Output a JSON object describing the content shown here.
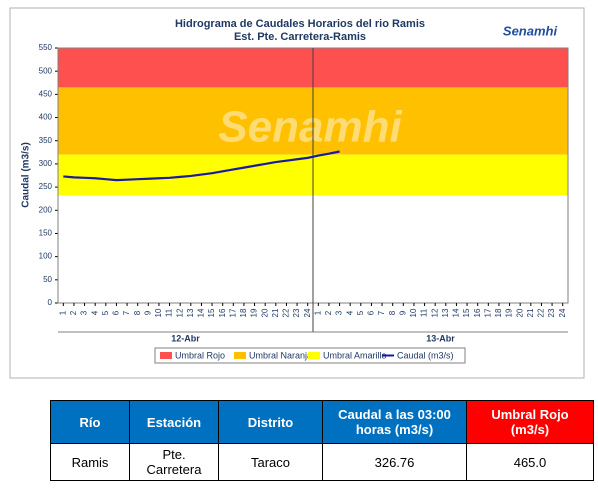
{
  "chart_data": {
    "type": "line",
    "title": "Hidrograma de Caudales Horarios del rio Ramis",
    "subtitle": "Est. Pte. Carretera-Ramis",
    "logo": "Senamhi",
    "y_label": "Caudal (m3/s)",
    "categories": [
      "1",
      "2",
      "3",
      "4",
      "5",
      "6",
      "7",
      "8",
      "9",
      "10",
      "11",
      "12",
      "13",
      "14",
      "15",
      "16",
      "17",
      "18",
      "19",
      "20",
      "21",
      "22",
      "23",
      "24",
      "1",
      "2",
      "3",
      "4",
      "5",
      "6",
      "7",
      "8",
      "9",
      "10",
      "11",
      "12",
      "13",
      "14",
      "15",
      "16",
      "17",
      "18",
      "19",
      "20",
      "21",
      "22",
      "23",
      "24"
    ],
    "groups": [
      "12-Abr",
      "13-Abr"
    ],
    "ylim": [
      0,
      550
    ],
    "yticks": [
      0,
      50,
      100,
      150,
      200,
      250,
      300,
      350,
      400,
      450,
      500,
      550
    ],
    "thresholds": [
      {
        "name": "Umbral Rojo",
        "color": "#ff5050",
        "from": 465,
        "to": 550
      },
      {
        "name": "Umbral Naranja",
        "color": "#ffc000",
        "from": 320,
        "to": 465
      },
      {
        "name": "Umbral Amarillo",
        "color": "#ffff00",
        "from": 232,
        "to": 320
      }
    ],
    "series": [
      {
        "name": "Caudal (m3/s)",
        "color": "#1a1aa0",
        "values": [
          273,
          271,
          270,
          269,
          267,
          265,
          266,
          267,
          268,
          269,
          270,
          272,
          274,
          277,
          280,
          284,
          288,
          292,
          296,
          300,
          304,
          307,
          310,
          313,
          318,
          322,
          326.76,
          null,
          null,
          null,
          null,
          null,
          null,
          null,
          null,
          null,
          null,
          null,
          null,
          null,
          null,
          null,
          null,
          null,
          null,
          null,
          null,
          null
        ]
      }
    ]
  },
  "table": {
    "headers": [
      "Río",
      "Estación",
      "Distrito",
      "Caudal a las 03:00 horas (m3/s)",
      "Umbral Rojo (m3/s)"
    ],
    "rows": [
      [
        "Ramis",
        "Pte. Carretera",
        "Taraco",
        "326.76",
        "465.0"
      ]
    ]
  }
}
